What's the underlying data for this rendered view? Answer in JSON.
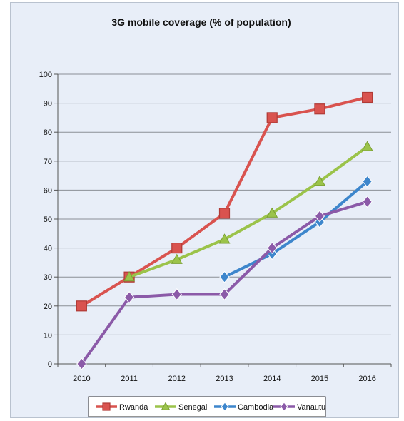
{
  "chart_data": {
    "type": "line",
    "title": "3G mobile coverage (% of population)",
    "xlabel": "",
    "ylabel": "",
    "categories": [
      "2010",
      "2011",
      "2012",
      "2013",
      "2014",
      "2015",
      "2016"
    ],
    "ylim": [
      0,
      100
    ],
    "yticks": [
      0,
      10,
      20,
      30,
      40,
      50,
      60,
      70,
      80,
      90,
      100
    ],
    "grid": true,
    "legend_position": "bottom",
    "series": [
      {
        "name": "Rwanda",
        "color": "#d9534f",
        "marker": "square",
        "values": [
          20,
          30,
          40,
          52,
          85,
          88,
          92
        ]
      },
      {
        "name": "Senegal",
        "color": "#9bc34a",
        "marker": "triangle",
        "values": [
          null,
          30,
          36,
          43,
          52,
          63,
          75
        ]
      },
      {
        "name": "Cambodia",
        "color": "#3d86cc",
        "marker": "diamond",
        "values": [
          null,
          null,
          null,
          30,
          38,
          49,
          63
        ]
      },
      {
        "name": "Vanautu",
        "color": "#8b5aa8",
        "marker": "diamond",
        "values": [
          0,
          23,
          24,
          24,
          40,
          51,
          56
        ]
      }
    ]
  }
}
